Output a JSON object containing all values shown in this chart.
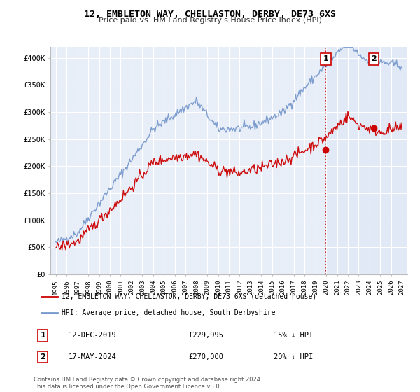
{
  "title": "12, EMBLETON WAY, CHELLASTON, DERBY, DE73 6XS",
  "subtitle": "Price paid vs. HM Land Registry's House Price Index (HPI)",
  "background_color": "#ffffff",
  "plot_bg_color": "#e8eef8",
  "grid_color": "#ffffff",
  "hpi_color": "#7799cc",
  "price_color": "#cc0000",
  "vline_color": "#cc0000",
  "vline_style": ":",
  "shade_color": "#dde8f5",
  "ylim": [
    0,
    420000
  ],
  "yticks": [
    0,
    50000,
    100000,
    150000,
    200000,
    250000,
    300000,
    350000,
    400000
  ],
  "ytick_labels": [
    "£0",
    "£50K",
    "£100K",
    "£150K",
    "£200K",
    "£250K",
    "£300K",
    "£350K",
    "£400K"
  ],
  "xlim_start": 1994.5,
  "xlim_end": 2027.5,
  "xticks": [
    1995,
    1996,
    1997,
    1998,
    1999,
    2000,
    2001,
    2002,
    2003,
    2004,
    2005,
    2006,
    2007,
    2008,
    2009,
    2010,
    2011,
    2012,
    2013,
    2014,
    2015,
    2016,
    2017,
    2018,
    2019,
    2020,
    2021,
    2022,
    2023,
    2024,
    2025,
    2026,
    2027
  ],
  "marker1_x": 2019.95,
  "marker1_y": 229995,
  "marker1_label": "1",
  "marker1_date": "12-DEC-2019",
  "marker1_price": "£229,995",
  "marker1_hpi": "15% ↓ HPI",
  "marker2_x": 2024.38,
  "marker2_y": 270000,
  "marker2_label": "2",
  "marker2_date": "17-MAY-2024",
  "marker2_price": "£270,000",
  "marker2_hpi": "20% ↓ HPI",
  "legend_line1": "12, EMBLETON WAY, CHELLASTON, DERBY, DE73 6XS (detached house)",
  "legend_line2": "HPI: Average price, detached house, South Derbyshire",
  "footer": "Contains HM Land Registry data © Crown copyright and database right 2024.\nThis data is licensed under the Open Government Licence v3.0."
}
